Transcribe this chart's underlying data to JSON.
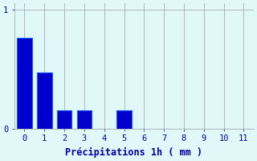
{
  "categories": [
    0,
    1,
    2,
    3,
    4,
    5,
    6,
    7,
    8,
    9,
    10,
    11
  ],
  "values": [
    0.76,
    0.47,
    0.15,
    0.15,
    0.0,
    0.15,
    0,
    0,
    0,
    0,
    0,
    0
  ],
  "bar_color": "#0000cc",
  "bar_edge_color": "#1a5aff",
  "background_color": "#e0f8f8",
  "xlabel": "Précipitations 1h ( mm )",
  "xlim": [
    -0.5,
    11.5
  ],
  "ylim": [
    0,
    1.05
  ],
  "yticks": [
    0,
    1
  ],
  "xticks": [
    0,
    1,
    2,
    3,
    4,
    5,
    6,
    7,
    8,
    9,
    10,
    11
  ],
  "grid_color": "#a0a0a0",
  "tick_color": "#0000aa",
  "label_color": "#0000aa",
  "label_fontsize": 8.5,
  "tick_fontsize": 7.5,
  "bar_width": 0.75
}
